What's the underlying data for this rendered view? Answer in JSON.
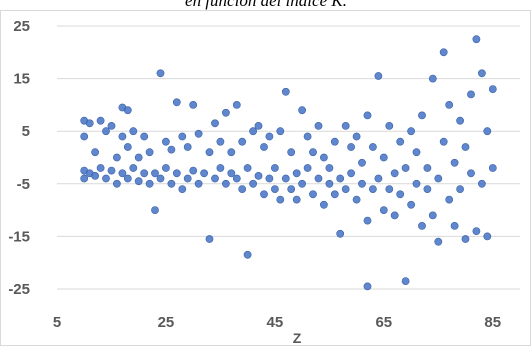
{
  "chart_data": {
    "type": "scatter",
    "title": "en función del índice K.",
    "xlabel": "Z",
    "ylabel": "",
    "xlim": [
      5,
      90
    ],
    "ylim": [
      -25,
      25
    ],
    "x_ticks": [
      "5",
      "25",
      "45",
      "65",
      "85"
    ],
    "y_ticks": [
      "25",
      "15",
      "5",
      "-5",
      "-15",
      "-25"
    ],
    "grid": "horizontal",
    "legend": "none",
    "marker_color": "#4472c4",
    "series": [
      {
        "points": [
          [
            10,
            -4
          ],
          [
            10,
            -2.5
          ],
          [
            10,
            4
          ],
          [
            10,
            7
          ],
          [
            11,
            -3
          ],
          [
            11,
            6.5
          ],
          [
            12,
            -3.5
          ],
          [
            12,
            1
          ],
          [
            13,
            -2
          ],
          [
            13,
            7
          ],
          [
            14,
            -4
          ],
          [
            14,
            5
          ],
          [
            15,
            -2.5
          ],
          [
            15,
            6
          ],
          [
            16,
            -5
          ],
          [
            16,
            0
          ],
          [
            17,
            -3
          ],
          [
            17,
            4
          ],
          [
            17,
            9.5
          ],
          [
            18,
            -4
          ],
          [
            18,
            2
          ],
          [
            18,
            9
          ],
          [
            19,
            -2
          ],
          [
            19,
            5
          ],
          [
            20,
            -4.5
          ],
          [
            20,
            0
          ],
          [
            21,
            -3
          ],
          [
            21,
            4
          ],
          [
            22,
            -5
          ],
          [
            22,
            1
          ],
          [
            23,
            -10
          ],
          [
            23,
            -3
          ],
          [
            24,
            16
          ],
          [
            24,
            -4
          ],
          [
            25,
            -2
          ],
          [
            25,
            3
          ],
          [
            26,
            -5
          ],
          [
            26,
            1.5
          ],
          [
            27,
            10.5
          ],
          [
            27,
            -3
          ],
          [
            28,
            -6
          ],
          [
            28,
            4
          ],
          [
            29,
            -4
          ],
          [
            29,
            2
          ],
          [
            30,
            10
          ],
          [
            30,
            -2.5
          ],
          [
            31,
            -5
          ],
          [
            31,
            4.5
          ],
          [
            32,
            -3
          ],
          [
            33,
            -15.5
          ],
          [
            33,
            1
          ],
          [
            34,
            -4
          ],
          [
            34,
            6.5
          ],
          [
            35,
            -2
          ],
          [
            35,
            3
          ],
          [
            36,
            -5
          ],
          [
            36,
            8.5
          ],
          [
            37,
            -3
          ],
          [
            37,
            1
          ],
          [
            38,
            10
          ],
          [
            38,
            -4
          ],
          [
            39,
            -6
          ],
          [
            39,
            3
          ],
          [
            40,
            -18.5
          ],
          [
            40,
            -2
          ],
          [
            41,
            5
          ],
          [
            41,
            -5
          ],
          [
            42,
            6
          ],
          [
            42,
            -3.5
          ],
          [
            43,
            -7
          ],
          [
            43,
            2
          ],
          [
            44,
            -4
          ],
          [
            44,
            4
          ],
          [
            45,
            -2
          ],
          [
            45,
            -6
          ],
          [
            46,
            5
          ],
          [
            46,
            -8
          ],
          [
            47,
            12.5
          ],
          [
            47,
            -4
          ],
          [
            48,
            -6
          ],
          [
            48,
            1
          ],
          [
            49,
            -3
          ],
          [
            49,
            -8
          ],
          [
            50,
            9
          ],
          [
            50,
            -5
          ],
          [
            51,
            -2
          ],
          [
            51,
            4
          ],
          [
            52,
            -7
          ],
          [
            52,
            1
          ],
          [
            53,
            -4
          ],
          [
            53,
            6
          ],
          [
            54,
            -9
          ],
          [
            54,
            0
          ],
          [
            55,
            -5
          ],
          [
            55,
            -2
          ],
          [
            56,
            -7
          ],
          [
            56,
            3
          ],
          [
            57,
            -14.5
          ],
          [
            57,
            -4
          ],
          [
            58,
            6
          ],
          [
            58,
            -6
          ],
          [
            59,
            -3
          ],
          [
            59,
            2
          ],
          [
            60,
            -8
          ],
          [
            60,
            4
          ],
          [
            61,
            -5
          ],
          [
            61,
            -1
          ],
          [
            62,
            -24.5
          ],
          [
            62,
            -12
          ],
          [
            62,
            8
          ],
          [
            63,
            -6
          ],
          [
            63,
            2
          ],
          [
            64,
            15.5
          ],
          [
            64,
            -4
          ],
          [
            65,
            -10
          ],
          [
            65,
            0
          ],
          [
            66,
            -6
          ],
          [
            66,
            6
          ],
          [
            67,
            -3
          ],
          [
            67,
            -11
          ],
          [
            68,
            3
          ],
          [
            68,
            -7
          ],
          [
            69,
            -23.5
          ],
          [
            69,
            -2
          ],
          [
            70,
            -9
          ],
          [
            70,
            5
          ],
          [
            71,
            -5
          ],
          [
            71,
            1
          ],
          [
            72,
            -13
          ],
          [
            72,
            8
          ],
          [
            73,
            -6
          ],
          [
            73,
            -2
          ],
          [
            74,
            15
          ],
          [
            74,
            -11
          ],
          [
            75,
            -16
          ],
          [
            75,
            -4
          ],
          [
            76,
            20
          ],
          [
            76,
            3
          ],
          [
            77,
            -8
          ],
          [
            77,
            10
          ],
          [
            78,
            -13
          ],
          [
            78,
            -1
          ],
          [
            79,
            7
          ],
          [
            79,
            -6
          ],
          [
            80,
            -15.5
          ],
          [
            80,
            2
          ],
          [
            81,
            -3
          ],
          [
            81,
            12
          ],
          [
            82,
            22.5
          ],
          [
            82,
            -14
          ],
          [
            83,
            16
          ],
          [
            83,
            -5
          ],
          [
            84,
            5
          ],
          [
            84,
            -15
          ],
          [
            85,
            13
          ],
          [
            85,
            -2
          ]
        ]
      }
    ]
  }
}
